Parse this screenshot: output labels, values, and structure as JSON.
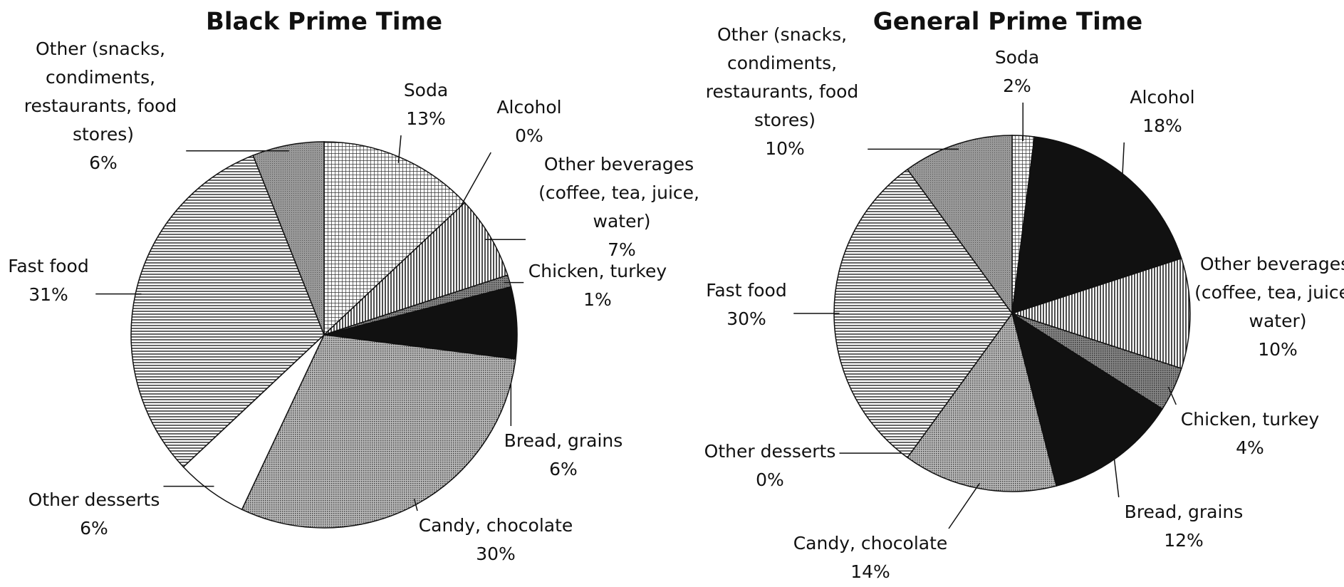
{
  "chart_data": [
    {
      "type": "pie",
      "title": "Black Prime Time",
      "categories": [
        "Soda",
        "Alcohol",
        "Other beverages (coffee, tea, juice, water)",
        "Chicken, turkey",
        "Bread, grains",
        "Candy, chocolate",
        "Other desserts",
        "Fast food",
        "Other (snacks, condiments, restaurants, food stores)"
      ],
      "values": [
        13,
        0,
        7,
        1,
        6,
        30,
        6,
        31,
        6
      ],
      "value_labels": [
        "13%",
        "0%",
        "7%",
        "1%",
        "6%",
        "30%",
        "6%",
        "31%",
        "6%"
      ],
      "patterns": [
        "grid",
        "black",
        "vlines",
        "checker",
        "black",
        "dots",
        "white",
        "hlines",
        "gray"
      ]
    },
    {
      "type": "pie",
      "title": "General Prime Time",
      "categories": [
        "Soda",
        "Alcohol",
        "Other beverages (coffee, tea, juice, water)",
        "Chicken, turkey",
        "Bread, grains",
        "Candy, chocolate",
        "Other desserts",
        "Fast food",
        "Other (snacks, condiments, restaurants, food stores)"
      ],
      "values": [
        2,
        18,
        10,
        4,
        12,
        14,
        0,
        30,
        10
      ],
      "value_labels": [
        "2%",
        "18%",
        "10%",
        "4%",
        "12%",
        "14%",
        "0%",
        "30%",
        "10%"
      ],
      "patterns": [
        "grid",
        "black",
        "vlines",
        "checker",
        "black",
        "dots",
        "white",
        "hlines",
        "gray"
      ]
    }
  ]
}
